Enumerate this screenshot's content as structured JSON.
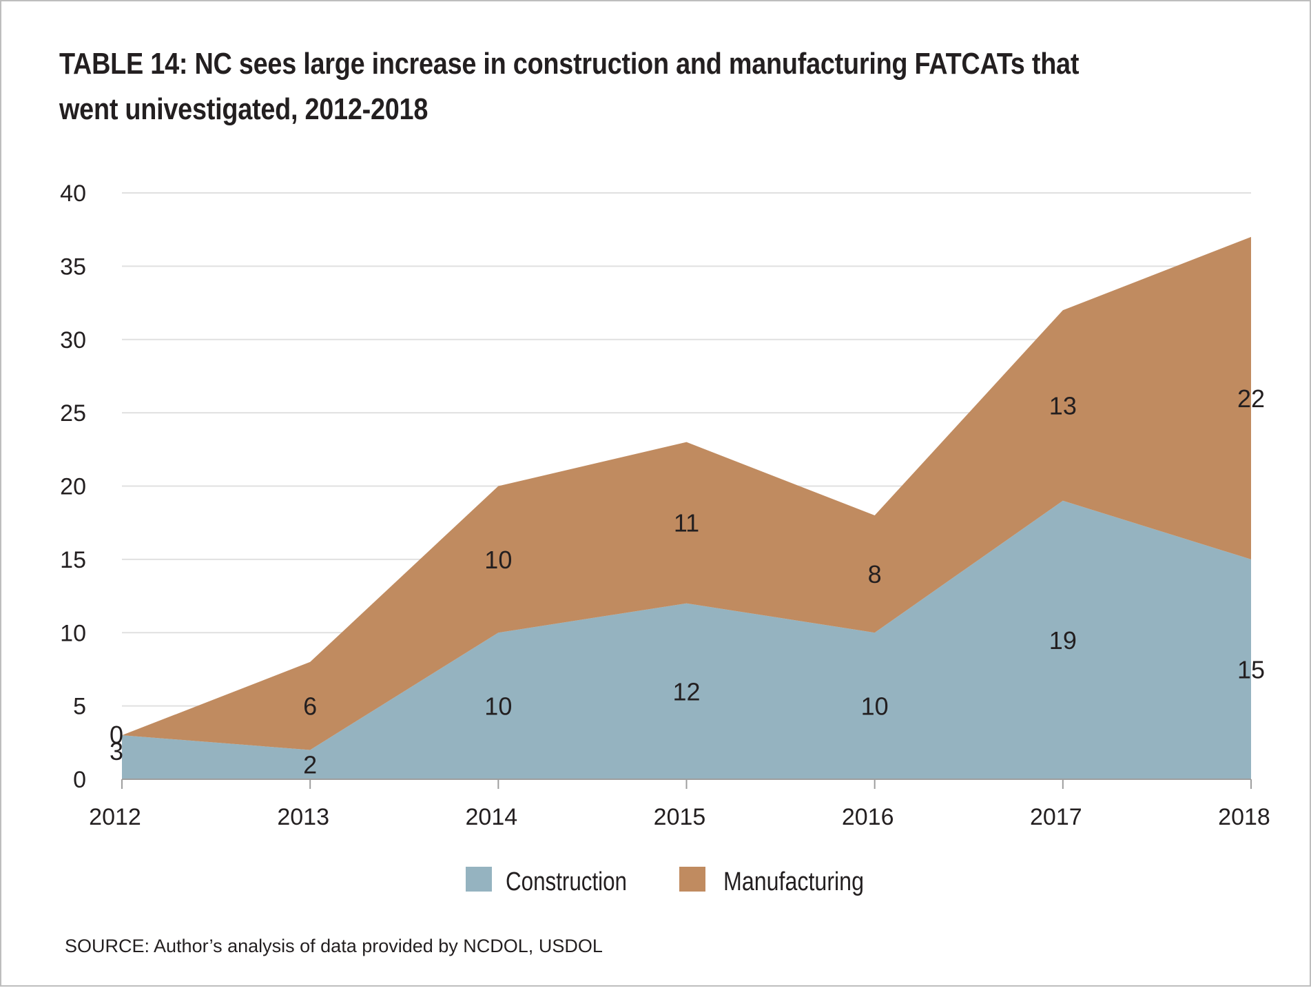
{
  "title": "TABLE 14:  NC sees large increase in construction and manufacturing FATCATs that went univestigated, 2012-2018",
  "source": "SOURCE:  Author’s analysis of data provided by NCDOL, USDOL",
  "colors": {
    "construction": "#95b3c0",
    "manufacturing": "#c08b60",
    "grid": "#e0e0e0",
    "axis": "#9e9e9e",
    "text": "#231f20"
  },
  "chart_data": {
    "type": "area",
    "stacked": true,
    "categories": [
      "2012",
      "2013",
      "2014",
      "2015",
      "2016",
      "2017",
      "2018"
    ],
    "series": [
      {
        "name": "Construction",
        "values": [
          3,
          2,
          10,
          12,
          10,
          19,
          15
        ]
      },
      {
        "name": "Manufacturing",
        "values": [
          0,
          6,
          10,
          11,
          8,
          13,
          22
        ]
      }
    ],
    "yticks": [
      "0",
      "5",
      "10",
      "15",
      "20",
      "25",
      "30",
      "35",
      "40"
    ],
    "ylim": [
      0,
      40
    ],
    "grid": true,
    "legend": "bottom-center",
    "xlabel": "",
    "ylabel": ""
  }
}
